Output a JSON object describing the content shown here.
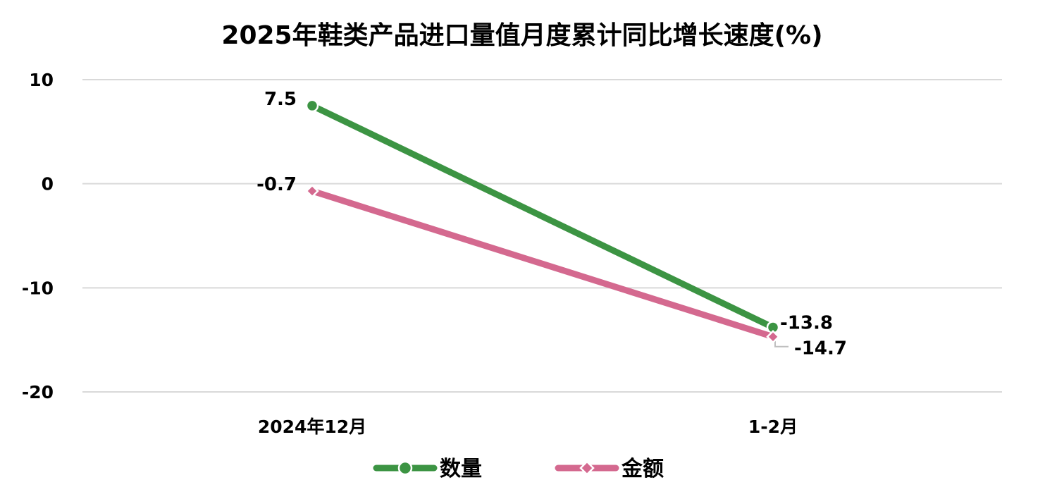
{
  "chart_data": {
    "type": "line",
    "title": "2025年鞋类产品进口量值月度累计同比增长速度(%)",
    "categories": [
      "2024年12月",
      "1-2月"
    ],
    "series": [
      {
        "name": "数量",
        "values": [
          7.5,
          -13.8
        ],
        "labels": [
          "7.5",
          "-13.8"
        ],
        "color": "#3C9443",
        "marker": "circle"
      },
      {
        "name": "金额",
        "values": [
          -0.7,
          -14.7
        ],
        "labels": [
          "-0.7",
          "-14.7"
        ],
        "color": "#D4698F",
        "marker": "diamond"
      }
    ],
    "ylim": [
      -20,
      10
    ],
    "yticks": [
      10,
      0,
      -10,
      -20
    ],
    "ytick_labels": [
      "10",
      "0",
      "-10",
      "-20"
    ],
    "grid": true,
    "gridline_color": "#D9D9D9",
    "leader_line_color": "#BFBFBF",
    "legend_position": "bottom"
  }
}
